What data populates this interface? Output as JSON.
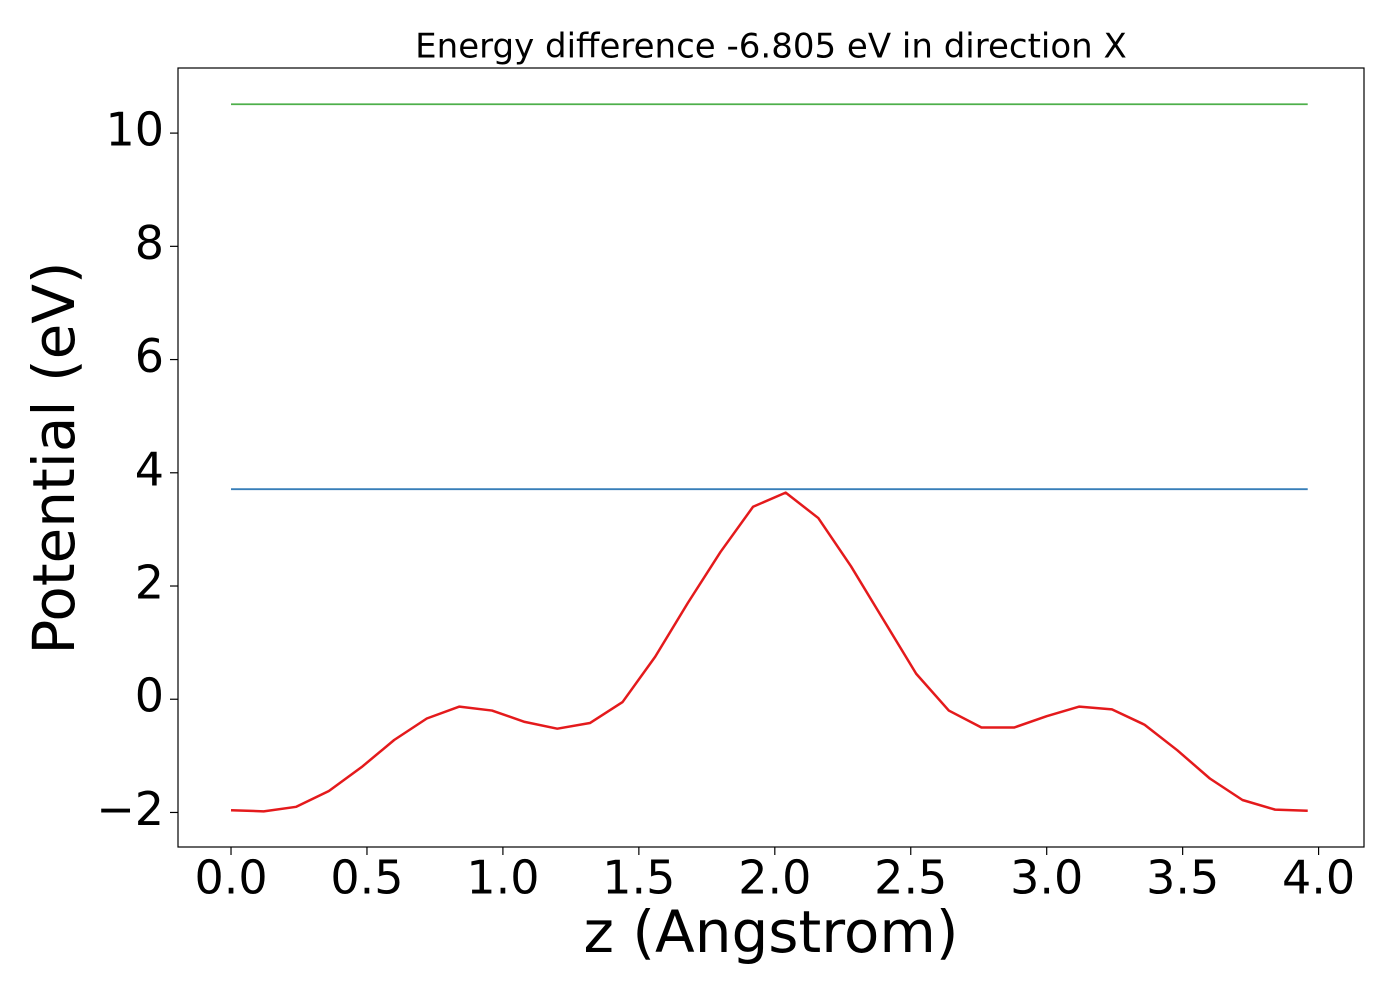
{
  "chart_data": {
    "type": "line",
    "title": "Energy difference -6.805 eV in direction X",
    "x_label": "z (Angstrom)",
    "y_label": "Potential (eV)",
    "x": [
      0,
      0.12,
      0.24,
      0.36,
      0.48,
      0.6,
      0.72,
      0.84,
      0.96,
      1.08,
      1.2,
      1.32,
      1.44,
      1.56,
      1.68,
      1.8,
      1.92,
      2.04,
      2.16,
      2.28,
      2.4,
      2.52,
      2.64,
      2.76,
      2.88,
      3.0,
      3.12,
      3.24,
      3.36,
      3.48,
      3.6,
      3.72,
      3.84,
      3.96
    ],
    "series": [
      {
        "color": "#e41a1c",
        "values": [
          -1.96,
          -1.98,
          -1.9,
          -1.62,
          -1.2,
          -0.72,
          -0.34,
          -0.13,
          -0.2,
          -0.4,
          -0.52,
          -0.42,
          -0.05,
          0.75,
          1.7,
          2.6,
          3.4,
          3.65,
          3.2,
          2.35,
          1.4,
          0.45,
          -0.2,
          -0.5,
          -0.5,
          -0.3,
          -0.13,
          -0.18,
          -0.45,
          -0.9,
          -1.4,
          -1.78,
          -1.95,
          -1.97
        ]
      },
      {
        "color": "#377eb8",
        "values": [
          3.71,
          3.71,
          3.71,
          3.71,
          3.71,
          3.71,
          3.71,
          3.71,
          3.71,
          3.71,
          3.71,
          3.71,
          3.71,
          3.71,
          3.71,
          3.71,
          3.71,
          3.71,
          3.71,
          3.71,
          3.71,
          3.71,
          3.71,
          3.71,
          3.71,
          3.71,
          3.71,
          3.71,
          3.71,
          3.71,
          3.71,
          3.71,
          3.71,
          3.71
        ]
      },
      {
        "color": "#4daf4a",
        "values": [
          10.51,
          10.51,
          10.51,
          10.51,
          10.51,
          10.51,
          10.51,
          10.51,
          10.51,
          10.51,
          10.51,
          10.51,
          10.51,
          10.51,
          10.51,
          10.51,
          10.51,
          10.51,
          10.51,
          10.51,
          10.51,
          10.51,
          10.51,
          10.51,
          10.51,
          10.51,
          10.51,
          10.51,
          10.51,
          10.51,
          10.51,
          10.51,
          10.51,
          10.51
        ]
      }
    ],
    "xlim": [
      -0.195,
      4.167
    ],
    "ylim": [
      -2.61,
      11.15
    ],
    "xticks": [
      {
        "value": 0,
        "label": "0.0"
      },
      {
        "value": 0.5,
        "label": "0.5"
      },
      {
        "value": 1,
        "label": "1.0"
      },
      {
        "value": 1.5,
        "label": "1.5"
      },
      {
        "value": 2,
        "label": "2.0"
      },
      {
        "value": 2.5,
        "label": "2.5"
      },
      {
        "value": 3,
        "label": "3.0"
      },
      {
        "value": 3.5,
        "label": "3.5"
      },
      {
        "value": 4,
        "label": "4.0"
      }
    ],
    "yticks": [
      {
        "value": -2,
        "label": "−2"
      },
      0,
      2,
      4,
      6,
      8,
      10
    ],
    "grid": false
  }
}
